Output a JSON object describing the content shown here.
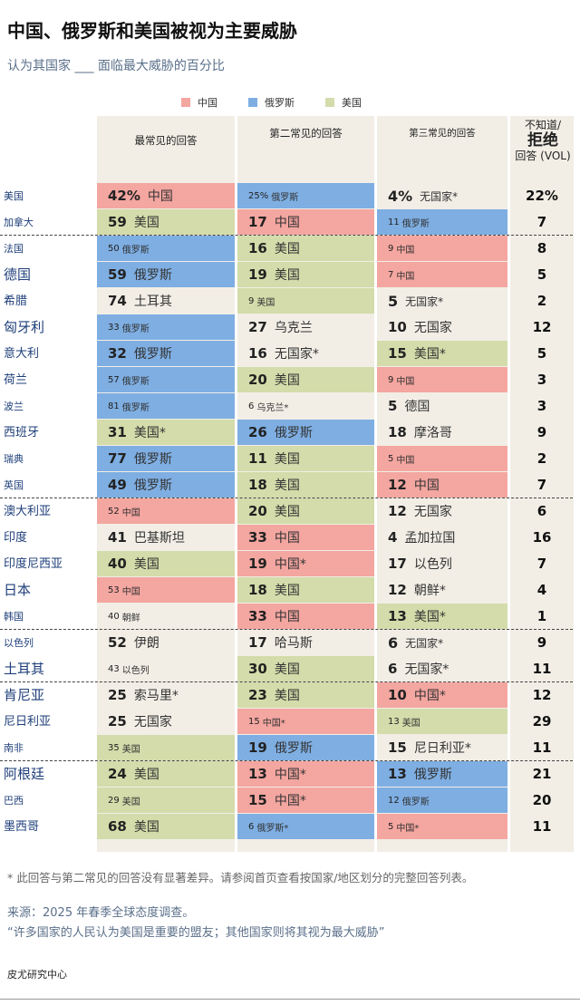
{
  "header": {
    "title": "中国、俄罗斯和美国被视为主要威胁",
    "subtitle": "认为其国家 ___ 面临最大威胁的百分比"
  },
  "legend": [
    {
      "label": "中国",
      "color": "#f4a6a0"
    },
    {
      "label": "俄罗斯",
      "color": "#7eaee2"
    },
    {
      "label": "美国",
      "color": "#d3dcaa"
    }
  ],
  "columns": {
    "first": "最常见的回答",
    "second": "第二常见的回答",
    "third": "第三常见的回答",
    "dk_line1": "不知道/",
    "dk_line2": "拒绝",
    "dk_line3": "回答 (VOL)"
  },
  "colors": {
    "中国": "#f4a6a0",
    "俄罗斯": "#7eaee2",
    "美国": "#d3dcaa",
    "other": "#f2eee6"
  },
  "chart_data": {
    "type": "table",
    "title": "中国、俄罗斯和美国被视为主要威胁",
    "subtitle": "认为其国家 ___ 面临最大威胁的百分比",
    "rows": [
      {
        "country": "美国",
        "first": {
          "value": "42%",
          "label": "中国"
        },
        "second": {
          "value": "25%",
          "label": "俄罗斯"
        },
        "third": {
          "value": "4%",
          "label": "无国家*"
        },
        "dk": "22%"
      },
      {
        "country": "加拿大",
        "first": {
          "value": "59",
          "label": "美国"
        },
        "second": {
          "value": "17",
          "label": "中国"
        },
        "third": {
          "value": "11",
          "label": "俄罗斯"
        },
        "dk": "7"
      },
      {
        "country": "法国",
        "first": {
          "value": "50",
          "label": "俄罗斯"
        },
        "second": {
          "value": "16",
          "label": "美国"
        },
        "third": {
          "value": "9",
          "label": "中国"
        },
        "dk": "8"
      },
      {
        "country": "德国",
        "first": {
          "value": "59",
          "label": "俄罗斯"
        },
        "second": {
          "value": "19",
          "label": "美国"
        },
        "third": {
          "value": "7",
          "label": "中国"
        },
        "dk": "5"
      },
      {
        "country": "希腊",
        "first": {
          "value": "74",
          "label": "土耳其"
        },
        "second": {
          "value": "9",
          "label": "美国"
        },
        "third": {
          "value": "5",
          "label": "无国家*"
        },
        "dk": "2"
      },
      {
        "country": "匈牙利",
        "first": {
          "value": "33",
          "label": "俄罗斯"
        },
        "second": {
          "value": "27",
          "label": "乌克兰"
        },
        "third": {
          "value": "10",
          "label": "无国家"
        },
        "dk": "12"
      },
      {
        "country": "意大利",
        "first": {
          "value": "32",
          "label": "俄罗斯"
        },
        "second": {
          "value": "16",
          "label": "无国家*"
        },
        "third": {
          "value": "15",
          "label": "美国*"
        },
        "dk": "5"
      },
      {
        "country": "荷兰",
        "first": {
          "value": "57",
          "label": "俄罗斯"
        },
        "second": {
          "value": "20",
          "label": "美国"
        },
        "third": {
          "value": "9",
          "label": "中国"
        },
        "dk": "3"
      },
      {
        "country": "波兰",
        "first": {
          "value": "81",
          "label": "俄罗斯"
        },
        "second": {
          "value": "6",
          "label": "乌克兰*"
        },
        "third": {
          "value": "5",
          "label": "德国"
        },
        "dk": "3"
      },
      {
        "country": "西班牙",
        "first": {
          "value": "31",
          "label": "美国*"
        },
        "second": {
          "value": "26",
          "label": "俄罗斯"
        },
        "third": {
          "value": "18",
          "label": "摩洛哥"
        },
        "dk": "9"
      },
      {
        "country": "瑞典",
        "first": {
          "value": "77",
          "label": "俄罗斯"
        },
        "second": {
          "value": "11",
          "label": "美国"
        },
        "third": {
          "value": "5",
          "label": "中国"
        },
        "dk": "2"
      },
      {
        "country": "英国",
        "first": {
          "value": "49",
          "label": "俄罗斯"
        },
        "second": {
          "value": "18",
          "label": "美国"
        },
        "third": {
          "value": "12",
          "label": "中国"
        },
        "dk": "7"
      },
      {
        "country": "澳大利亚",
        "first": {
          "value": "52",
          "label": "中国"
        },
        "second": {
          "value": "20",
          "label": "美国"
        },
        "third": {
          "value": "12",
          "label": "无国家"
        },
        "dk": "6"
      },
      {
        "country": "印度",
        "first": {
          "value": "41",
          "label": "巴基斯坦"
        },
        "second": {
          "value": "33",
          "label": "中国"
        },
        "third": {
          "value": "4",
          "label": "孟加拉国"
        },
        "dk": "16"
      },
      {
        "country": "印度尼西亚",
        "first": {
          "value": "40",
          "label": "美国"
        },
        "second": {
          "value": "19",
          "label": "中国*"
        },
        "third": {
          "value": "17",
          "label": "以色列"
        },
        "dk": "7"
      },
      {
        "country": "日本",
        "first": {
          "value": "53",
          "label": "中国"
        },
        "second": {
          "value": "18",
          "label": "美国"
        },
        "third": {
          "value": "12",
          "label": "朝鲜*"
        },
        "dk": "4"
      },
      {
        "country": "韩国",
        "first": {
          "value": "40",
          "label": "朝鲜"
        },
        "second": {
          "value": "33",
          "label": "中国"
        },
        "third": {
          "value": "13",
          "label": "美国*"
        },
        "dk": "1"
      },
      {
        "country": "以色列",
        "first": {
          "value": "52",
          "label": "伊朗"
        },
        "second": {
          "value": "17",
          "label": "哈马斯"
        },
        "third": {
          "value": "6",
          "label": "无国家*"
        },
        "dk": "9"
      },
      {
        "country": "土耳其",
        "first": {
          "value": "43",
          "label": "以色列"
        },
        "second": {
          "value": "30",
          "label": "美国"
        },
        "third": {
          "value": "6",
          "label": "无国家*"
        },
        "dk": "11"
      },
      {
        "country": "肯尼亚",
        "first": {
          "value": "25",
          "label": "索马里*"
        },
        "second": {
          "value": "23",
          "label": "美国"
        },
        "third": {
          "value": "10",
          "label": "中国*"
        },
        "dk": "12"
      },
      {
        "country": "尼日利亚",
        "first": {
          "value": "25",
          "label": "无国家"
        },
        "second": {
          "value": "15",
          "label": "中国*"
        },
        "third": {
          "value": "13",
          "label": "美国"
        },
        "dk": "29"
      },
      {
        "country": "南非",
        "first": {
          "value": "35",
          "label": "美国"
        },
        "second": {
          "value": "19",
          "label": "俄罗斯"
        },
        "third": {
          "value": "15",
          "label": "尼日利亚*"
        },
        "dk": "11"
      },
      {
        "country": "阿根廷",
        "first": {
          "value": "24",
          "label": "美国"
        },
        "second": {
          "value": "13",
          "label": "中国*"
        },
        "third": {
          "value": "13",
          "label": "俄罗斯"
        },
        "dk": "21"
      },
      {
        "country": "巴西",
        "first": {
          "value": "29",
          "label": "美国"
        },
        "second": {
          "value": "15",
          "label": "中国*"
        },
        "third": {
          "value": "12",
          "label": "俄罗斯"
        },
        "dk": "20"
      },
      {
        "country": "墨西哥",
        "first": {
          "value": "68",
          "label": "美国"
        },
        "second": {
          "value": "6",
          "label": "俄罗斯*"
        },
        "third": {
          "value": "5",
          "label": "中国*"
        },
        "dk": "11"
      }
    ]
  },
  "footer": {
    "note": "* 此回答与第二常见的回答没有显著差异。请参阅首页查看按国家/地区划分的完整回答列表。",
    "source": "来源：2025 年春季全球态度调查。",
    "quote": "“许多国家的人民认为美国是重要的盟友；其他国家则将其视为最大威胁”",
    "org": "皮尤研究中心"
  }
}
